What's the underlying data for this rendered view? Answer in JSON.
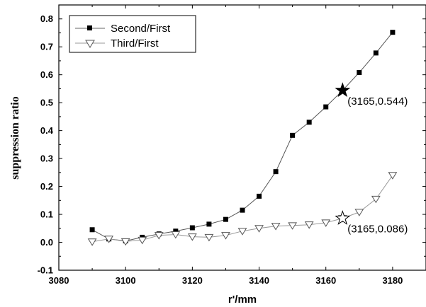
{
  "chart_data": {
    "type": "line",
    "xlabel": "r'/mm",
    "ylabel": "suppression ratio",
    "xlim": [
      3080,
      3190
    ],
    "ylim": [
      -0.1,
      0.85
    ],
    "xticks": [
      3080,
      3100,
      3120,
      3140,
      3160,
      3180
    ],
    "yticks": [
      -0.1,
      0.0,
      0.1,
      0.2,
      0.3,
      0.4,
      0.5,
      0.6,
      0.7,
      0.8
    ],
    "grid": false,
    "legend_position": "top-left",
    "x": [
      3090,
      3095,
      3100,
      3105,
      3110,
      3115,
      3120,
      3125,
      3130,
      3135,
      3140,
      3145,
      3150,
      3155,
      3160,
      3165,
      3170,
      3175,
      3180
    ],
    "series": [
      {
        "name": "Second/First",
        "marker": "filled-square",
        "color": "#000000",
        "values": [
          0.045,
          0.012,
          0.005,
          0.018,
          0.03,
          0.04,
          0.052,
          0.065,
          0.082,
          0.115,
          0.165,
          0.253,
          0.383,
          0.43,
          0.485,
          0.544,
          0.608,
          0.678,
          0.752
        ]
      },
      {
        "name": "Third/First",
        "marker": "open-down-triangle",
        "color": "#000000",
        "values": [
          0.002,
          0.012,
          0.003,
          0.008,
          0.025,
          0.028,
          0.02,
          0.018,
          0.025,
          0.04,
          0.05,
          0.058,
          0.06,
          0.063,
          0.07,
          0.086,
          0.108,
          0.155,
          0.24
        ]
      }
    ],
    "annotations": [
      {
        "series": 0,
        "x": 3165,
        "y": 0.544,
        "marker": "filled-star",
        "text": "(3165,0.544)"
      },
      {
        "series": 1,
        "x": 3165,
        "y": 0.086,
        "marker": "open-star",
        "text": "(3165,0.086)"
      }
    ]
  }
}
